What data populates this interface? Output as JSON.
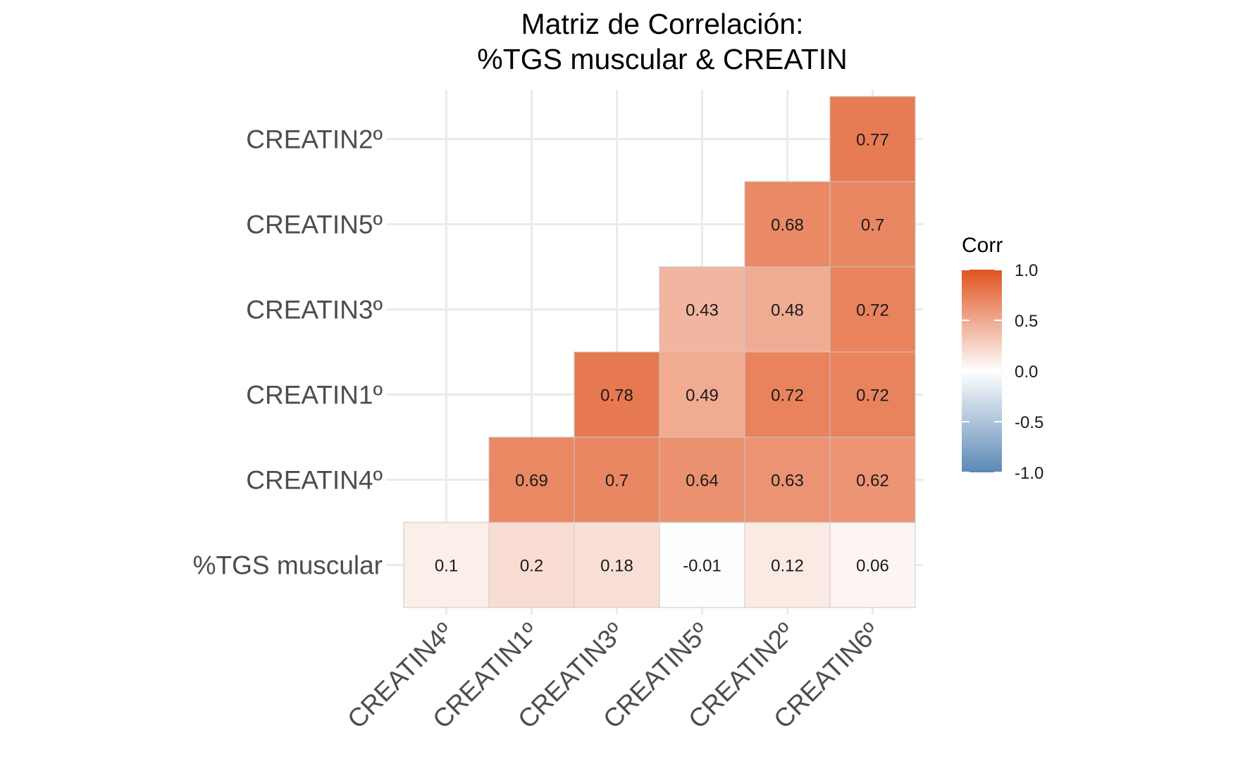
{
  "chart_data": {
    "type": "heatmap",
    "title": [
      "Matriz de Correlación:",
      "%TGS muscular & CREATIN"
    ],
    "x_categories": [
      "CREATIN4º",
      "CREATIN1º",
      "CREATIN3º",
      "CREATIN5º",
      "CREATIN2º",
      "CREATIN6º"
    ],
    "y_categories": [
      "%TGS muscular",
      "CREATIN4º",
      "CREATIN1º",
      "CREATIN3º",
      "CREATIN5º",
      "CREATIN2º"
    ],
    "values": [
      [
        0.1,
        0.2,
        0.18,
        -0.01,
        0.12,
        0.06
      ],
      [
        null,
        0.69,
        0.7,
        0.64,
        0.63,
        0.62
      ],
      [
        null,
        null,
        0.78,
        0.49,
        0.72,
        0.72
      ],
      [
        null,
        null,
        null,
        0.43,
        0.48,
        0.72
      ],
      [
        null,
        null,
        null,
        null,
        0.68,
        0.7
      ],
      [
        null,
        null,
        null,
        null,
        null,
        0.77
      ]
    ],
    "legend": {
      "title": "Corr",
      "ticks": [
        "1.0",
        "0.5",
        "0.0",
        "-0.5",
        "-1.0"
      ],
      "range": [
        -1,
        1
      ],
      "placement": "right"
    },
    "colors": {
      "high": "#E0531F",
      "mid": "#FFFFFF",
      "low": "#5B89B5",
      "grid": "#EBEBEB",
      "tile_border": "#C8C8C8"
    },
    "grid": true
  }
}
